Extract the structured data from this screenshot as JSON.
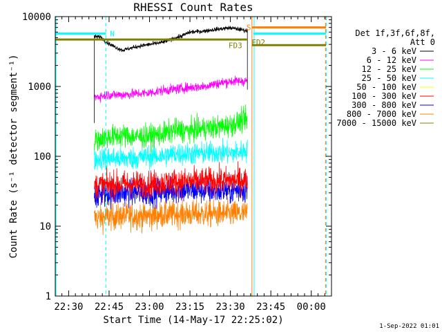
{
  "chart_data": {
    "type": "line",
    "title": "RHESSI Count Rates",
    "xlabel": "Start Time (14-May-17 22:25:02)",
    "ylabel": "Count Rate (s⁻¹ detector segment⁻¹)",
    "x_tick_labels": [
      "22:30",
      "22:45",
      "23:00",
      "23:15",
      "23:30",
      "23:45",
      "00:00"
    ],
    "x_tick_minutes": [
      30,
      45,
      60,
      75,
      90,
      105,
      120
    ],
    "xlim_minutes": [
      25.03,
      127.5
    ],
    "y_scale": "log",
    "ylim": [
      1,
      10000
    ],
    "y_tick_labels": [
      "1",
      "10",
      "100",
      "1000",
      "10000"
    ],
    "y_tick_values": [
      1,
      10,
      100,
      1000,
      10000
    ],
    "data_range_minutes": [
      39.5,
      96.3
    ],
    "legend": {
      "header_1": "Det 1f,3f,6f,8f,",
      "header_2": "Att 0",
      "placement": "right"
    },
    "series": [
      {
        "name": "3 - 6 keV",
        "color": "#000000",
        "level": 3800,
        "points": [
          [
            39.5,
            5200
          ],
          [
            42,
            5100
          ],
          [
            44,
            4300
          ],
          [
            47,
            3700
          ],
          [
            50,
            3300
          ],
          [
            55,
            3700
          ],
          [
            60,
            4000
          ],
          [
            65,
            4300
          ],
          [
            70,
            5000
          ],
          [
            72,
            5300
          ],
          [
            75,
            6000
          ],
          [
            80,
            6200
          ],
          [
            85,
            6600
          ],
          [
            90,
            6900
          ],
          [
            93,
            6600
          ],
          [
            96,
            6300
          ]
        ]
      },
      {
        "name": "6 - 12 keV",
        "color": "#ff00ff",
        "level": 780,
        "points": [
          [
            39.5,
            700
          ],
          [
            45,
            760
          ],
          [
            50,
            760
          ],
          [
            55,
            790
          ],
          [
            60,
            810
          ],
          [
            65,
            880
          ],
          [
            70,
            920
          ],
          [
            75,
            970
          ],
          [
            80,
            1000
          ],
          [
            85,
            1100
          ],
          [
            90,
            1180
          ],
          [
            96,
            1200
          ]
        ]
      },
      {
        "name": "12 - 25 keV",
        "color": "#00ff00",
        "level": 200,
        "points": [
          [
            39.5,
            170
          ],
          [
            45,
            190
          ],
          [
            50,
            200
          ],
          [
            55,
            190
          ],
          [
            60,
            195
          ],
          [
            65,
            210
          ],
          [
            70,
            240
          ],
          [
            75,
            230
          ],
          [
            80,
            250
          ],
          [
            85,
            260
          ],
          [
            90,
            280
          ],
          [
            96,
            340
          ]
        ]
      },
      {
        "name": "25 - 50 keV",
        "color": "#00ffff",
        "level": 95,
        "points": [
          [
            39.5,
            90
          ],
          [
            45,
            95
          ],
          [
            50,
            92
          ],
          [
            55,
            95
          ],
          [
            60,
            100
          ],
          [
            65,
            100
          ],
          [
            70,
            110
          ],
          [
            75,
            108
          ],
          [
            80,
            110
          ],
          [
            85,
            115
          ],
          [
            90,
            110
          ],
          [
            96,
            120
          ]
        ]
      },
      {
        "name": "50 - 100 keV",
        "color": "#ffff00",
        "level": 35,
        "points": [
          [
            39.5,
            35
          ],
          [
            96,
            35
          ]
        ]
      },
      {
        "name": "100 - 300 keV",
        "color": "#ff0000",
        "level": 40,
        "points": [
          [
            39.5,
            38
          ],
          [
            50,
            40
          ],
          [
            60,
            40
          ],
          [
            70,
            43
          ],
          [
            80,
            44
          ],
          [
            90,
            45
          ],
          [
            96,
            46
          ]
        ]
      },
      {
        "name": "300 - 800 keV",
        "color": "#0000ff",
        "level": 30,
        "points": [
          [
            39.5,
            28
          ],
          [
            50,
            30
          ],
          [
            60,
            30
          ],
          [
            70,
            33
          ],
          [
            80,
            33
          ],
          [
            90,
            32
          ],
          [
            96,
            34
          ]
        ]
      },
      {
        "name": "800 - 7000 keV",
        "color": "#ff8000",
        "level": 14,
        "points": [
          [
            39.5,
            13
          ],
          [
            50,
            14
          ],
          [
            60,
            14
          ],
          [
            70,
            15
          ],
          [
            80,
            15
          ],
          [
            90,
            15
          ],
          [
            96,
            15
          ]
        ]
      },
      {
        "name": "7000 - 15000 keV",
        "color": "#808000",
        "level": 5000,
        "points": []
      }
    ],
    "night_intervals": [
      {
        "label": "N",
        "start": 25.03,
        "end": 43.8,
        "y": 5700,
        "color": "#00ffff"
      },
      {
        "label": "",
        "start": 98.5,
        "end": 125.5,
        "y": 5700,
        "color": "#00ffff"
      }
    ],
    "saa_intervals": [
      {
        "label": "S",
        "start": 98.0,
        "end": 125.5,
        "y": 7000,
        "color": "#ff8000"
      }
    ],
    "flare_bars": [
      {
        "label": "FD2",
        "start": 25.03,
        "end": 96.3,
        "y": 4700,
        "color": "#808000"
      },
      {
        "label": "FD3",
        "start": 98.0,
        "end": 125.5,
        "y": 3900,
        "color": "#808000"
      }
    ],
    "vertical_markers": [
      {
        "x": 25.3,
        "color": "#00ffff",
        "style": "solid"
      },
      {
        "x": 43.8,
        "color": "#00ffff",
        "style": "dashed"
      },
      {
        "x": 98.0,
        "color": "#ff8000",
        "style": "solid"
      },
      {
        "x": 98.8,
        "color": "#00ffff",
        "style": "solid"
      },
      {
        "x": 125.3,
        "color": "#ff8000",
        "style": "dashed"
      },
      {
        "x": 125.6,
        "color": "#00ffff",
        "style": "dashed"
      }
    ]
  },
  "footer": {
    "timestamp": "1-Sep-2022 01:01"
  }
}
